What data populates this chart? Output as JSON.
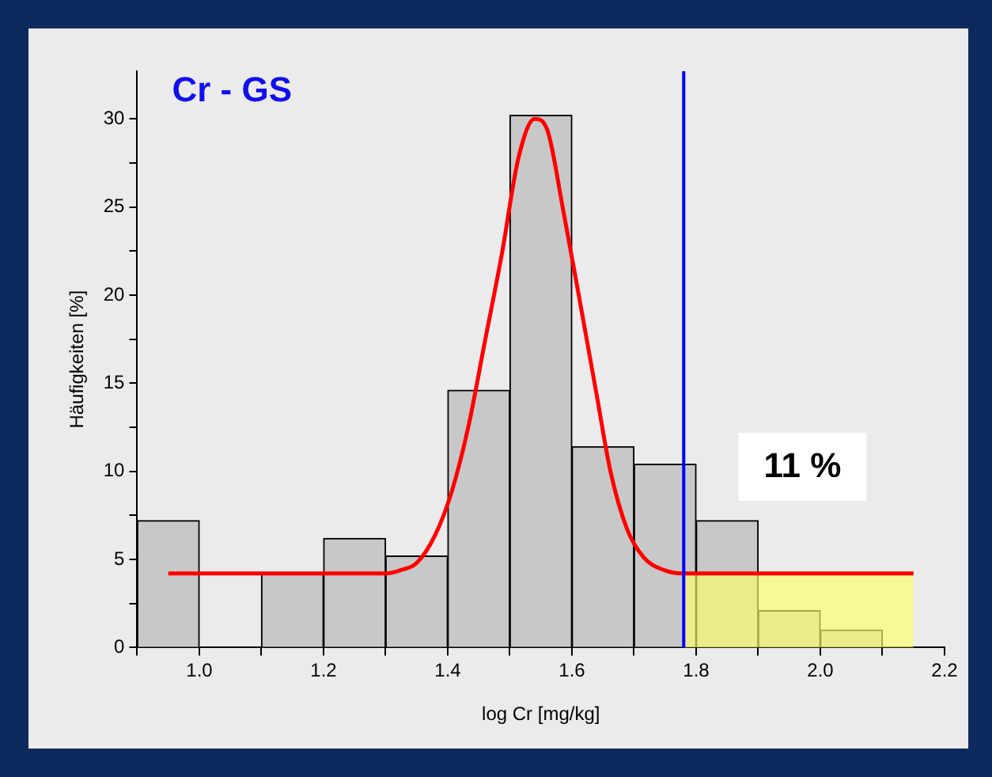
{
  "chart_data": {
    "type": "histogram",
    "title": "Cr - GS",
    "xlabel": "log Cr [mg/kg]",
    "ylabel": "Häufigkeiten [%]",
    "bins": [
      0.9,
      1.0,
      1.1,
      1.2,
      1.3,
      1.4,
      1.5,
      1.6,
      1.7,
      1.8,
      1.9,
      2.0,
      2.1
    ],
    "series": [
      {
        "color": "#c8c8c8",
        "values": [
          7.2,
          0,
          4.2,
          6.2,
          5.2,
          14.6,
          30.2,
          11.4,
          10.4,
          7.2,
          2.1,
          1.0
        ]
      },
      {
        "type": "line",
        "color": "#ff0000",
        "x": [
          0.95,
          1.3,
          1.325,
          1.35,
          1.38,
          1.406,
          1.433,
          1.46,
          1.487,
          1.514,
          1.54,
          1.56,
          1.586,
          1.613,
          1.64,
          1.662,
          1.689,
          1.716,
          1.748,
          1.78,
          2.15
        ],
        "values": [
          4.2,
          4.2,
          4.4,
          4.8,
          6.4,
          8.8,
          12.5,
          17.4,
          22.3,
          27.8,
          30.0,
          29.4,
          24.8,
          19.6,
          14.3,
          10.0,
          6.7,
          5.1,
          4.4,
          4.2,
          4.2
        ]
      },
      {
        "type": "area",
        "color": "#ffff66",
        "x": [
          1.78,
          2.15
        ],
        "values": [
          4.1,
          4.1
        ]
      }
    ],
    "ref_lines": [
      {
        "axis": "x",
        "value": 1.78,
        "color": "#0000ff"
      }
    ],
    "annotations": [
      "11 %"
    ],
    "xlim": [
      0.9,
      2.2
    ],
    "ylim": [
      0,
      32.7
    ],
    "xticks": [
      {
        "value": 0.9,
        "label": null
      },
      {
        "value": 1.0,
        "label": "1.0"
      },
      {
        "value": 1.1,
        "label": null
      },
      {
        "value": 1.2,
        "label": "1.2"
      },
      {
        "value": 1.3,
        "label": null
      },
      {
        "value": 1.4,
        "label": "1.4"
      },
      {
        "value": 1.5,
        "label": null
      },
      {
        "value": 1.6,
        "label": "1.6"
      },
      {
        "value": 1.7,
        "label": null
      },
      {
        "value": 1.8,
        "label": "1.8"
      },
      {
        "value": 1.9,
        "label": null
      },
      {
        "value": 2.0,
        "label": "2.0"
      },
      {
        "value": 2.1,
        "label": null
      },
      {
        "value": 2.2,
        "label": "2.2"
      }
    ],
    "yticks": [
      0,
      {
        "value": 2.5,
        "label": null
      },
      5,
      {
        "value": 7.5,
        "label": null
      },
      10,
      {
        "value": 12.5,
        "label": null
      },
      15,
      {
        "value": 17.5,
        "label": null
      },
      20,
      {
        "value": 22.5,
        "label": null
      },
      25,
      {
        "value": 27.5,
        "label": null
      },
      30
    ],
    "grid": false,
    "legend": false
  }
}
